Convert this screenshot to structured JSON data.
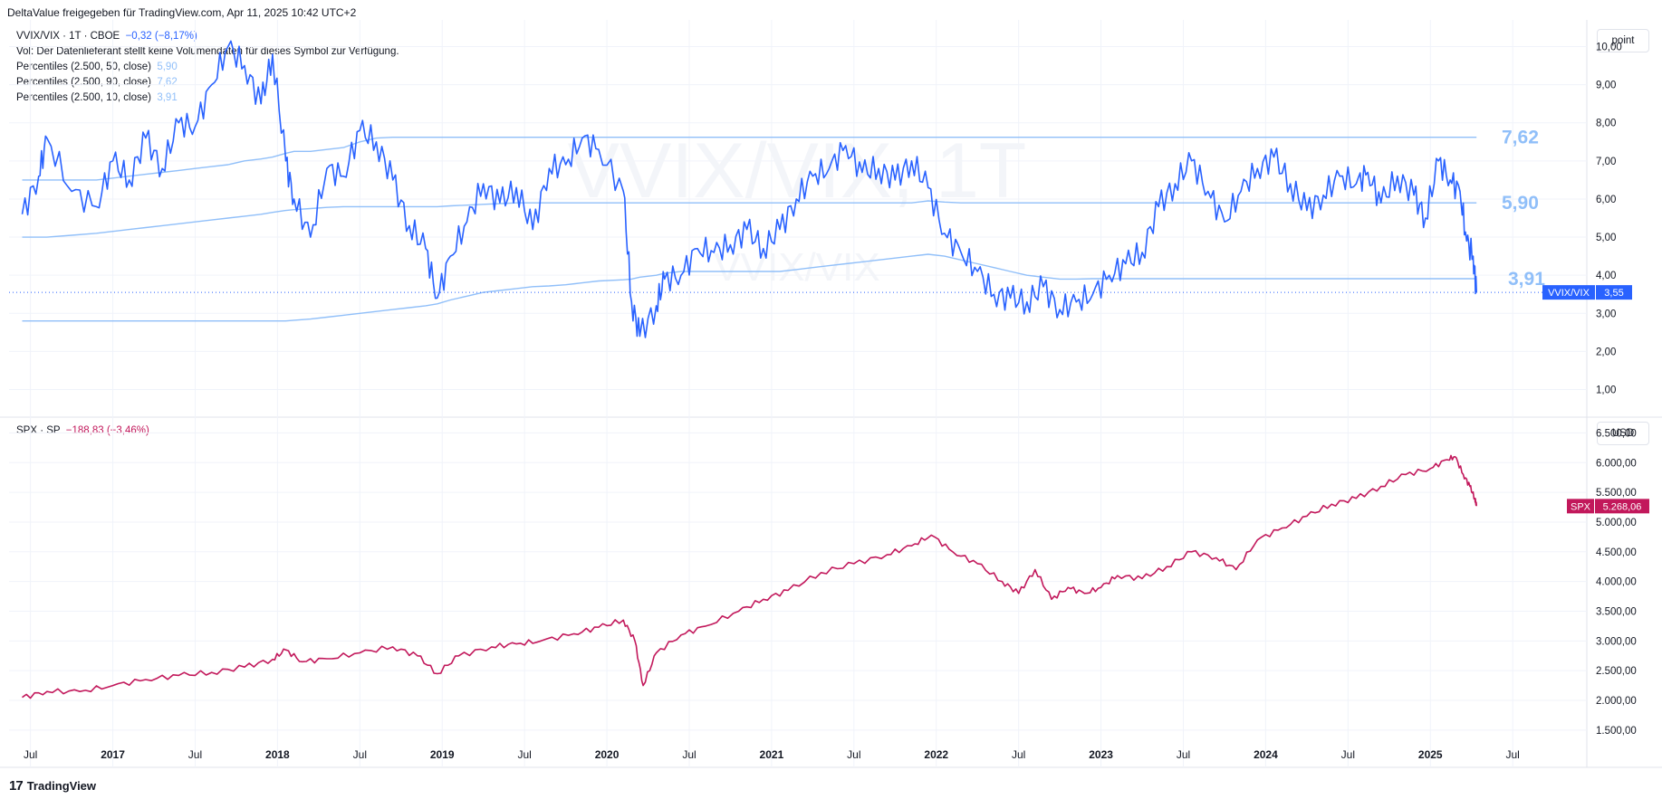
{
  "header": {
    "share_text": "DeltaValue freigegeben für TradingView.com, Apr 11, 2025 10:42 UTC+2"
  },
  "upper_pane": {
    "symbol": "VVIX/VIX · 1T · CBOE",
    "change": "−0,32 (−8,17%)",
    "vol_note": "Vol: Der Datenlieferant stellt keine Volumendaten für dieses Symbol zur Verfügung.",
    "percentiles": [
      {
        "label": "Percentiles (2.500, 50, close)",
        "value": "5,90"
      },
      {
        "label": "Percentiles (2.500, 90, close)",
        "value": "7,62"
      },
      {
        "label": "Percentiles (2.500, 10, close)",
        "value": "3,91"
      }
    ],
    "unit_button": "point",
    "watermark": "VVIX/VIX, 1T",
    "watermark_sub": "VVIX/VIX",
    "price_tag_label": "VVIX/VIX",
    "price_tag_value": "3,55",
    "level_labels": [
      "7,62",
      "5,90",
      "3,91"
    ]
  },
  "lower_pane": {
    "symbol": "SPX · SP",
    "change": "−188,83 (−3,46%)",
    "unit_button": "USD",
    "price_tag_label": "SPX",
    "price_tag_value": "5.268,06"
  },
  "footer": {
    "logo": "17",
    "brand": "TradingView"
  },
  "colors": {
    "vvix": "#2962ff",
    "percentile": "#90bff9",
    "spx": "#c2185b",
    "grid": "#f0f3fa",
    "axis_text": "#131722"
  },
  "chart_data": [
    {
      "type": "line",
      "title": "VVIX/VIX · 1T · CBOE",
      "ylim": [
        0.3,
        10.7
      ],
      "y_ticks": [
        "1,00",
        "2,00",
        "3,00",
        "4,00",
        "5,00",
        "6,00",
        "7,00",
        "8,00",
        "9,00",
        "10,00"
      ],
      "y_tick_values": [
        1,
        2,
        3,
        4,
        5,
        6,
        7,
        8,
        9,
        10
      ],
      "x": [
        2016.45,
        2016.55,
        2016.6,
        2016.75,
        2016.9,
        2017.0,
        2017.1,
        2017.2,
        2017.3,
        2017.4,
        2017.5,
        2017.6,
        2017.7,
        2017.8,
        2017.9,
        2017.97,
        2018.05,
        2018.1,
        2018.2,
        2018.3,
        2018.4,
        2018.5,
        2018.6,
        2018.7,
        2018.8,
        2018.9,
        2018.97,
        2019.05,
        2019.15,
        2019.25,
        2019.35,
        2019.45,
        2019.55,
        2019.65,
        2019.75,
        2019.85,
        2019.95,
        2020.1,
        2020.15,
        2020.2,
        2020.3,
        2020.35,
        2020.45,
        2020.55,
        2020.65,
        2020.75,
        2020.85,
        2020.95,
        2021.05,
        2021.15,
        2021.25,
        2021.35,
        2021.45,
        2021.55,
        2021.65,
        2021.75,
        2021.85,
        2021.95,
        2022.05,
        2022.15,
        2022.25,
        2022.35,
        2022.45,
        2022.55,
        2022.65,
        2022.75,
        2022.85,
        2022.95,
        2023.05,
        2023.15,
        2023.25,
        2023.35,
        2023.45,
        2023.55,
        2023.65,
        2023.75,
        2023.85,
        2023.95,
        2024.05,
        2024.15,
        2024.25,
        2024.35,
        2024.45,
        2024.55,
        2024.62,
        2024.7,
        2024.8,
        2024.9,
        2024.97,
        2025.05,
        2025.12,
        2025.18,
        2025.22,
        2025.26,
        2025.28
      ],
      "series": [
        {
          "name": "VVIX/VIX",
          "values": [
            5.6,
            6.6,
            7.6,
            6.2,
            5.8,
            7.0,
            6.5,
            7.6,
            6.8,
            8.0,
            7.9,
            9.0,
            10.0,
            9.5,
            8.5,
            9.8,
            7.0,
            6.0,
            5.0,
            6.8,
            6.6,
            7.8,
            7.5,
            6.5,
            5.3,
            4.7,
            3.4,
            4.5,
            5.4,
            6.4,
            5.9,
            6.3,
            5.2,
            6.8,
            6.9,
            7.6,
            7.3,
            6.2,
            3.3,
            2.4,
            3.2,
            3.9,
            4.0,
            4.7,
            4.6,
            4.8,
            5.2,
            4.7,
            5.2,
            6.0,
            6.6,
            6.8,
            7.4,
            6.7,
            6.8,
            6.5,
            7.0,
            6.3,
            5.1,
            4.6,
            4.1,
            3.5,
            3.4,
            3.3,
            3.7,
            3.1,
            3.3,
            3.5,
            4.0,
            4.3,
            4.6,
            5.8,
            6.4,
            7.0,
            6.2,
            5.4,
            6.2,
            6.8,
            7.1,
            6.4,
            5.7,
            6.1,
            6.6,
            6.4,
            6.7,
            5.9,
            6.6,
            6.1,
            5.5,
            7.0,
            6.5,
            6.2,
            4.9,
            4.5,
            3.55
          ]
        },
        {
          "name": "Percentiles (2.500, 50, close)",
          "values": [
            5.0,
            5.0,
            5.0,
            5.05,
            5.1,
            5.15,
            5.2,
            5.25,
            5.3,
            5.35,
            5.4,
            5.45,
            5.5,
            5.55,
            5.6,
            5.65,
            5.7,
            5.72,
            5.75,
            5.78,
            5.8,
            5.8,
            5.8,
            5.8,
            5.8,
            5.8,
            5.8,
            5.82,
            5.84,
            5.86,
            5.88,
            5.9,
            5.9,
            5.9,
            5.9,
            5.9,
            5.9,
            5.9,
            5.9,
            5.9,
            5.9,
            5.9,
            5.9,
            5.9,
            5.9,
            5.9,
            5.9,
            5.9,
            5.9,
            5.9,
            5.9,
            5.9,
            5.9,
            5.9,
            5.9,
            5.9,
            5.9,
            5.95,
            5.92,
            5.9,
            5.9,
            5.9,
            5.9,
            5.9,
            5.9,
            5.9,
            5.9,
            5.9,
            5.9,
            5.9,
            5.9,
            5.9,
            5.9,
            5.9,
            5.9,
            5.9,
            5.9,
            5.9,
            5.9,
            5.9,
            5.9,
            5.9,
            5.9,
            5.9,
            5.9,
            5.9,
            5.9,
            5.9,
            5.9,
            5.9,
            5.9,
            5.9,
            5.9,
            5.9,
            5.9
          ]
        },
        {
          "name": "Percentiles (2.500, 90, close)",
          "values": [
            6.5,
            6.5,
            6.5,
            6.5,
            6.5,
            6.55,
            6.6,
            6.65,
            6.7,
            6.75,
            6.8,
            6.85,
            6.9,
            7.0,
            7.05,
            7.1,
            7.2,
            7.25,
            7.25,
            7.3,
            7.35,
            7.5,
            7.6,
            7.62,
            7.62,
            7.62,
            7.62,
            7.62,
            7.62,
            7.62,
            7.62,
            7.62,
            7.62,
            7.62,
            7.62,
            7.62,
            7.62,
            7.62,
            7.62,
            7.62,
            7.62,
            7.62,
            7.62,
            7.62,
            7.62,
            7.62,
            7.62,
            7.62,
            7.62,
            7.62,
            7.62,
            7.62,
            7.62,
            7.62,
            7.62,
            7.62,
            7.62,
            7.62,
            7.62,
            7.62,
            7.62,
            7.62,
            7.62,
            7.62,
            7.62,
            7.62,
            7.62,
            7.62,
            7.62,
            7.62,
            7.62,
            7.62,
            7.62,
            7.62,
            7.62,
            7.62,
            7.62,
            7.62,
            7.62,
            7.62,
            7.62,
            7.62,
            7.62,
            7.62,
            7.62,
            7.62,
            7.62,
            7.62,
            7.62,
            7.62,
            7.62,
            7.62,
            7.62,
            7.62,
            7.62
          ]
        },
        {
          "name": "Percentiles (2.500, 10, close)",
          "values": [
            2.8,
            2.8,
            2.8,
            2.8,
            2.8,
            2.8,
            2.8,
            2.8,
            2.8,
            2.8,
            2.8,
            2.8,
            2.8,
            2.8,
            2.8,
            2.8,
            2.8,
            2.82,
            2.85,
            2.9,
            2.95,
            3.0,
            3.05,
            3.1,
            3.15,
            3.2,
            3.25,
            3.35,
            3.45,
            3.55,
            3.6,
            3.65,
            3.7,
            3.72,
            3.75,
            3.8,
            3.85,
            3.88,
            3.9,
            3.95,
            4.0,
            4.05,
            4.1,
            4.1,
            4.1,
            4.1,
            4.1,
            4.1,
            4.1,
            4.15,
            4.2,
            4.25,
            4.3,
            4.35,
            4.4,
            4.45,
            4.5,
            4.55,
            4.5,
            4.4,
            4.3,
            4.2,
            4.1,
            4.0,
            3.95,
            3.9,
            3.9,
            3.91,
            3.91,
            3.91,
            3.91,
            3.91,
            3.91,
            3.91,
            3.91,
            3.91,
            3.91,
            3.91,
            3.91,
            3.91,
            3.91,
            3.91,
            3.91,
            3.91,
            3.91,
            3.91,
            3.91,
            3.91,
            3.91,
            3.91,
            3.91,
            3.91,
            3.91,
            3.91,
            3.91
          ]
        }
      ]
    },
    {
      "type": "line",
      "title": "SPX · SP",
      "ylim": [
        1300,
        6750
      ],
      "y_ticks": [
        "1.500,00",
        "2.000,00",
        "2.500,00",
        "3.000,00",
        "3.500,00",
        "4.000,00",
        "4.500,00",
        "5.000,00",
        "5.500,00",
        "6.000,00",
        "6.500,00"
      ],
      "y_tick_values": [
        1500,
        2000,
        2500,
        3000,
        3500,
        4000,
        4500,
        5000,
        5500,
        6000,
        6500
      ],
      "x": [
        2016.45,
        2016.6,
        2016.8,
        2017.0,
        2017.2,
        2017.4,
        2017.6,
        2017.8,
        2017.97,
        2018.05,
        2018.15,
        2018.3,
        2018.5,
        2018.7,
        2018.85,
        2018.97,
        2019.1,
        2019.3,
        2019.45,
        2019.6,
        2019.8,
        2019.95,
        2020.1,
        2020.17,
        2020.22,
        2020.3,
        2020.45,
        2020.6,
        2020.8,
        2020.95,
        2021.1,
        2021.3,
        2021.5,
        2021.7,
        2021.85,
        2021.97,
        2022.1,
        2022.25,
        2022.4,
        2022.5,
        2022.6,
        2022.7,
        2022.8,
        2022.9,
        2023.0,
        2023.1,
        2023.25,
        2023.4,
        2023.55,
        2023.7,
        2023.82,
        2023.95,
        2024.1,
        2024.25,
        2024.4,
        2024.55,
        2024.7,
        2024.85,
        2025.0,
        2025.1,
        2025.15,
        2025.2,
        2025.24,
        2025.27,
        2025.28
      ],
      "series": [
        {
          "name": "SPX",
          "values": [
            2050,
            2150,
            2150,
            2250,
            2350,
            2420,
            2470,
            2560,
            2690,
            2850,
            2650,
            2700,
            2800,
            2900,
            2750,
            2450,
            2750,
            2900,
            2950,
            3000,
            3120,
            3230,
            3350,
            3000,
            2250,
            2800,
            3100,
            3250,
            3500,
            3700,
            3850,
            4150,
            4300,
            4450,
            4600,
            4780,
            4500,
            4300,
            4000,
            3800,
            4200,
            3700,
            3900,
            3800,
            3900,
            4100,
            4050,
            4250,
            4500,
            4400,
            4200,
            4700,
            4900,
            5100,
            5300,
            5400,
            5600,
            5800,
            5900,
            6050,
            6100,
            5800,
            5600,
            5400,
            5268.06
          ]
        }
      ]
    }
  ],
  "x_axis_labels": [
    "Jul",
    "2017",
    "Jul",
    "2018",
    "Jul",
    "2019",
    "Jul",
    "2020",
    "Jul",
    "2021",
    "Jul",
    "2022",
    "Jul",
    "2023",
    "Jul",
    "2024",
    "Jul",
    "2025",
    "Jul"
  ],
  "x_axis_values": [
    2016.5,
    2017.0,
    2017.5,
    2018.0,
    2018.5,
    2019.0,
    2019.5,
    2020.0,
    2020.5,
    2021.0,
    2021.5,
    2022.0,
    2022.5,
    2023.0,
    2023.5,
    2024.0,
    2024.5,
    2025.0,
    2025.5
  ]
}
